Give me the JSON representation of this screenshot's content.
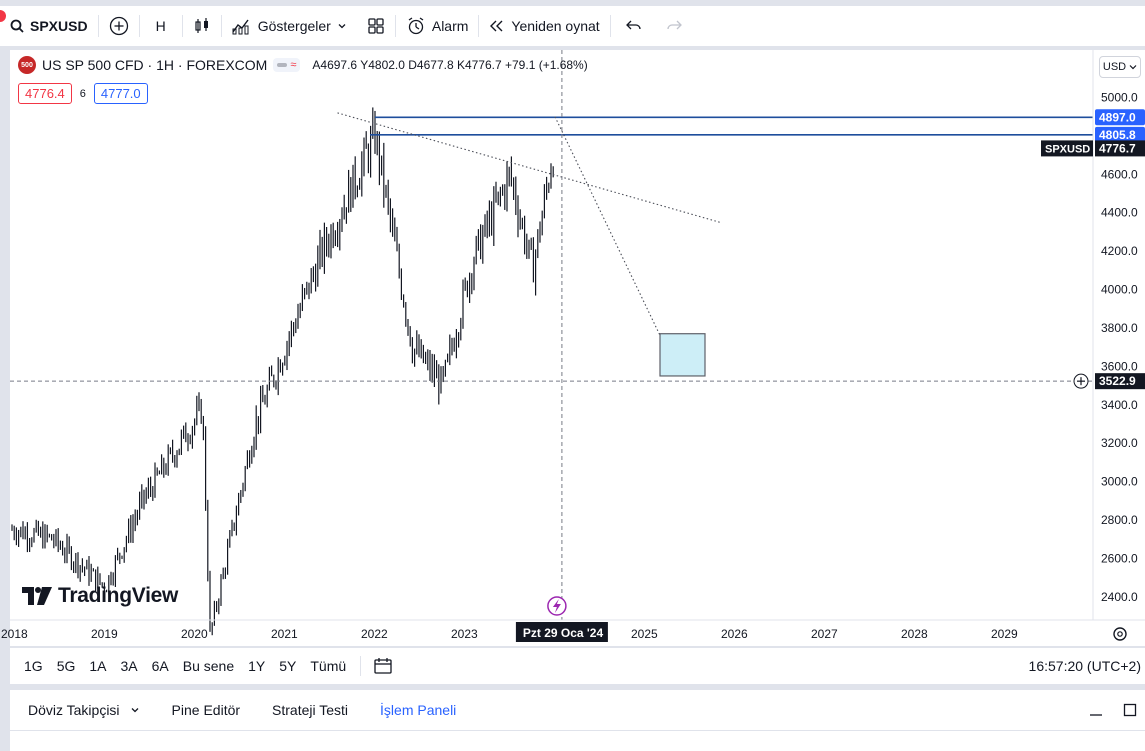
{
  "toolbar": {
    "symbol": "SPXUSD",
    "interval": "H",
    "indicators_label": "Göstergeler",
    "alarm_label": "Alarm",
    "replay_label": "Yeniden oynat"
  },
  "legend": {
    "title": "US SP 500 CFD · 1H · FOREXCOM",
    "logo_text": "500",
    "ohlc": "A4697.6 Y4802.0 D4677.8 K4776.7 +79.1 (+1.68%)",
    "bid": "4776.4",
    "spread": "6",
    "ask": "4777.0"
  },
  "price_axis": {
    "currency": "USD",
    "ticks": [
      "5000.0",
      "4600.0",
      "4400.0",
      "4200.0",
      "4000.0",
      "3800.0",
      "3600.0",
      "3400.0",
      "3200.0",
      "3000.0",
      "2800.0",
      "2600.0",
      "2400.0"
    ],
    "labels": {
      "level_high": "4897.0",
      "level_low": "4805.8",
      "symbol_tag": "SPXUSD",
      "last_price": "4776.7",
      "crosshair_price": "3522.9"
    }
  },
  "time_axis": {
    "ticks": [
      "2018",
      "2019",
      "2020",
      "2021",
      "2022",
      "2023",
      "2025",
      "2026",
      "2027",
      "2028",
      "2029"
    ],
    "crosshair_label": "Pzt 29 Oca '24"
  },
  "brand": "TradingView",
  "colors": {
    "up": "#131722",
    "level_line": "#1e4e9c",
    "last_price_bg": "#131722",
    "projection_box": "#cdeef7",
    "crosshair": "#787b86",
    "active_tab": "#2962ff"
  },
  "bottom_bar": {
    "ranges": [
      "1G",
      "5G",
      "1A",
      "3A",
      "6A",
      "Bu sene",
      "1Y",
      "5Y",
      "Tümü"
    ],
    "clock": "16:57:20 (UTC+2)"
  },
  "panel": {
    "tabs": [
      "Döviz Takipçisi",
      "Pine Editör",
      "Strateji Testi",
      "İşlem Paneli"
    ],
    "active_tab": "İşlem Paneli"
  },
  "chart_data": {
    "type": "candlestick-bar",
    "symbol": "SPXUSD",
    "x": [
      "2018-01",
      "2018-06",
      "2019-01",
      "2019-06",
      "2020-02",
      "2020-03",
      "2020-09",
      "2021-06",
      "2022-01",
      "2022-06",
      "2022-10",
      "2023-02",
      "2023-07",
      "2023-10",
      "2024-01"
    ],
    "y": [
      2750,
      2700,
      2450,
      2900,
      3380,
      2200,
      3300,
      4200,
      4800,
      3700,
      3500,
      4150,
      4600,
      4100,
      4777
    ],
    "ylim": [
      2300,
      5060
    ],
    "xlim": [
      "2018-01",
      "2029-12"
    ],
    "horizontal_levels": [
      4897.0,
      4805.8
    ],
    "crosshair": {
      "x": "2024-01-29",
      "y": 3522.9
    },
    "projection_box": {
      "x": [
        "2025-03",
        "2025-09"
      ],
      "y": [
        3550,
        3770
      ]
    },
    "trendline": {
      "x": [
        "2021-08",
        "2025-11"
      ],
      "y": [
        4920,
        4350
      ]
    },
    "projection_line": {
      "x": [
        "2024-01",
        "2025-04"
      ],
      "y": [
        4900,
        3680
      ]
    }
  }
}
